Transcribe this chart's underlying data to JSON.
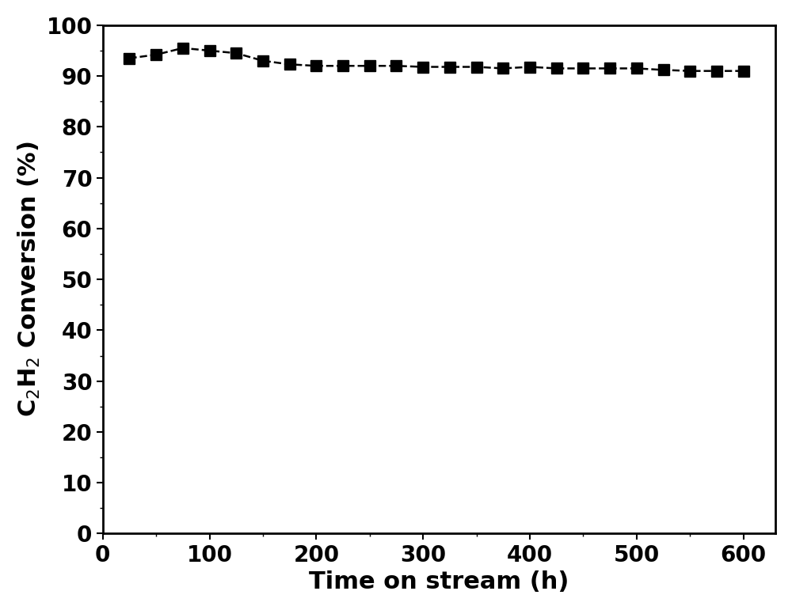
{
  "x": [
    25,
    50,
    75,
    100,
    125,
    150,
    175,
    200,
    225,
    250,
    275,
    300,
    325,
    350,
    375,
    400,
    425,
    450,
    475,
    500,
    525,
    550,
    575,
    600
  ],
  "y": [
    93.5,
    94.2,
    95.5,
    95.0,
    94.5,
    93.0,
    92.3,
    92.0,
    92.0,
    92.0,
    92.0,
    91.8,
    91.8,
    91.8,
    91.5,
    91.8,
    91.5,
    91.5,
    91.5,
    91.5,
    91.2,
    91.0,
    91.0,
    91.0
  ],
  "color": "#000000",
  "marker": "s",
  "markersize": 10,
  "linewidth": 1.8,
  "linestyle": "--",
  "xlabel": "Time on stream (h)",
  "ylabel": "C$_2$H$_2$ Conversion (%)",
  "xlim": [
    0,
    630
  ],
  "ylim": [
    0,
    100
  ],
  "xticks": [
    0,
    100,
    200,
    300,
    400,
    500,
    600
  ],
  "yticks": [
    0,
    10,
    20,
    30,
    40,
    50,
    60,
    70,
    80,
    90,
    100
  ],
  "xlabel_fontsize": 22,
  "ylabel_fontsize": 22,
  "tick_fontsize": 20,
  "xlabel_fontweight": "bold",
  "ylabel_fontweight": "bold",
  "background_color": "#ffffff",
  "spine_linewidth": 2.0
}
